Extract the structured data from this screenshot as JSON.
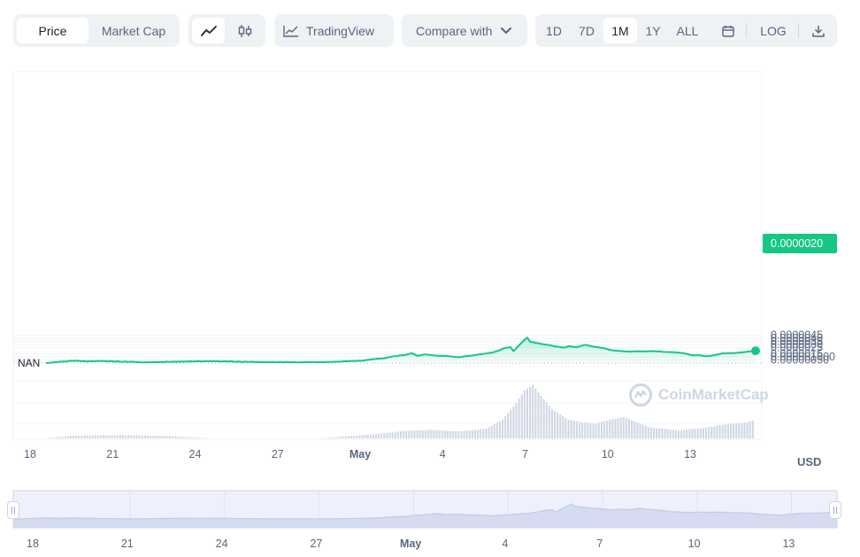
{
  "toolbar": {
    "metric_tabs": [
      {
        "label": "Price",
        "active": true
      },
      {
        "label": "Market Cap",
        "active": false
      }
    ],
    "chart_type_icons": [
      "line-chart-icon",
      "candlestick-icon"
    ],
    "tradingview_label": "TradingView",
    "compare_label": "Compare with",
    "ranges": [
      {
        "label": "1D",
        "active": false
      },
      {
        "label": "7D",
        "active": false
      },
      {
        "label": "1M",
        "active": true
      },
      {
        "label": "1Y",
        "active": false
      },
      {
        "label": "ALL",
        "active": false
      }
    ],
    "log_label": "LOG"
  },
  "colors": {
    "accent": "#16c784",
    "volume": "#cfd6e4",
    "muted": "#58667e"
  },
  "currency_label": "USD",
  "current_price_label": "0.0000020",
  "nan_label": "NAN",
  "watermark": "CoinMarketCap",
  "chart_data": {
    "type": "area",
    "y_tick_labels": [
      "0.0000045",
      "0.0000040",
      "0.0000035",
      "0.0000030",
      "0.0000025",
      "0.0000015",
      "0.000001000",
      "0.00000050"
    ],
    "y_ticks": [
      4.5e-06,
      4e-06,
      3.5e-06,
      3e-06,
      2.5e-06,
      1.5e-06,
      1e-06,
      5e-07
    ],
    "ylim": [
      0,
      4.7e-06
    ],
    "x_tick_labels": [
      "18",
      "21",
      "24",
      "27",
      "May",
      "4",
      "7",
      "10",
      "13"
    ],
    "x_ticks": [
      0,
      3,
      6,
      9,
      12,
      15,
      18,
      21,
      24
    ],
    "xlim": [
      0,
      25.8
    ],
    "series": [
      {
        "values": [
          [
            0.0,
            0.0
          ],
          [
            0.5,
            2e-07
          ],
          [
            1.0,
            3.8e-07
          ],
          [
            1.5,
            2.8e-07
          ],
          [
            2.0,
            3.5e-07
          ],
          [
            2.5,
            2.5e-07
          ],
          [
            3.0,
            2.2e-07
          ],
          [
            3.5,
            1.2e-07
          ],
          [
            4.0,
            1.5e-07
          ],
          [
            4.5,
            2e-07
          ],
          [
            5.0,
            2.5e-07
          ],
          [
            5.5,
            2.8e-07
          ],
          [
            6.0,
            3e-07
          ],
          [
            6.5,
            2.8e-07
          ],
          [
            7.0,
            2.2e-07
          ],
          [
            7.5,
            1.8e-07
          ],
          [
            8.0,
            1.5e-07
          ],
          [
            8.5,
            1.5e-07
          ],
          [
            9.0,
            1.2e-07
          ],
          [
            9.5,
            1.5e-07
          ],
          [
            10.0,
            1.5e-07
          ],
          [
            10.5,
            2e-07
          ],
          [
            11.0,
            3e-07
          ],
          [
            11.5,
            4e-07
          ],
          [
            12.0,
            7e-07
          ],
          [
            12.3,
            8e-07
          ],
          [
            12.5,
            1e-06
          ],
          [
            13.0,
            1.3e-06
          ],
          [
            13.3,
            1.6e-06
          ],
          [
            13.5,
            1.2e-06
          ],
          [
            13.8,
            1.4e-06
          ],
          [
            14.0,
            1.3e-06
          ],
          [
            14.3,
            1.2e-06
          ],
          [
            14.6,
            1.1e-06
          ],
          [
            15.0,
            9.5e-07
          ],
          [
            15.3,
            1.1e-06
          ],
          [
            15.6,
            1.3e-06
          ],
          [
            15.9,
            1.5e-06
          ],
          [
            16.2,
            1.7e-06
          ],
          [
            16.5,
            2.1e-06
          ],
          [
            16.7,
            2.5e-06
          ],
          [
            16.9,
            2.6e-06
          ],
          [
            17.0,
            1.9e-06
          ],
          [
            17.2,
            2.9e-06
          ],
          [
            17.4,
            3.8e-06
          ],
          [
            17.5,
            4.1e-06
          ],
          [
            17.6,
            3.5e-06
          ],
          [
            17.8,
            3.3e-06
          ],
          [
            18.0,
            3.1e-06
          ],
          [
            18.3,
            2.9e-06
          ],
          [
            18.5,
            2.7e-06
          ],
          [
            18.8,
            2.5e-06
          ],
          [
            19.0,
            2.7e-06
          ],
          [
            19.3,
            2.6e-06
          ],
          [
            19.6,
            3e-06
          ],
          [
            20.0,
            2.6e-06
          ],
          [
            20.3,
            2.4e-06
          ],
          [
            20.6,
            2.1e-06
          ],
          [
            21.0,
            1.9e-06
          ],
          [
            21.3,
            1.9e-06
          ],
          [
            21.5,
            1.95e-06
          ],
          [
            21.8,
            1.9e-06
          ],
          [
            22.0,
            1.95e-06
          ],
          [
            22.3,
            1.9e-06
          ],
          [
            22.6,
            1.8e-06
          ],
          [
            22.9,
            1.7e-06
          ],
          [
            23.2,
            1.6e-06
          ],
          [
            23.5,
            1.3e-06
          ],
          [
            23.8,
            1.25e-06
          ],
          [
            24.0,
            1.1e-06
          ],
          [
            24.3,
            1.3e-06
          ],
          [
            24.6,
            1.55e-06
          ],
          [
            25.0,
            1.65e-06
          ],
          [
            25.3,
            1.7e-06
          ],
          [
            25.6,
            1.9e-06
          ],
          [
            25.8,
            2e-06
          ]
        ]
      }
    ],
    "volume": [
      [
        0.0,
        0.0
      ],
      [
        1.0,
        0.05
      ],
      [
        2.0,
        0.06
      ],
      [
        3.0,
        0.06
      ],
      [
        4.0,
        0.05
      ],
      [
        5.0,
        0.03
      ],
      [
        6.0,
        0.0
      ],
      [
        8.0,
        0.0
      ],
      [
        10.0,
        0.0
      ],
      [
        12.0,
        0.08
      ],
      [
        13.0,
        0.14
      ],
      [
        14.0,
        0.16
      ],
      [
        15.0,
        0.13
      ],
      [
        16.0,
        0.18
      ],
      [
        16.6,
        0.35
      ],
      [
        17.0,
        0.6
      ],
      [
        17.4,
        0.9
      ],
      [
        17.7,
        1.0
      ],
      [
        18.0,
        0.8
      ],
      [
        18.4,
        0.55
      ],
      [
        19.0,
        0.35
      ],
      [
        19.5,
        0.3
      ],
      [
        20.0,
        0.28
      ],
      [
        20.5,
        0.35
      ],
      [
        21.0,
        0.4
      ],
      [
        21.5,
        0.3
      ],
      [
        22.0,
        0.2
      ],
      [
        22.5,
        0.18
      ],
      [
        23.0,
        0.15
      ],
      [
        23.5,
        0.18
      ],
      [
        24.0,
        0.2
      ],
      [
        24.5,
        0.25
      ],
      [
        25.0,
        0.28
      ],
      [
        25.5,
        0.3
      ],
      [
        25.8,
        0.35
      ]
    ],
    "grid": true,
    "legend": "none"
  },
  "navigator": {
    "x_tick_labels": [
      "18",
      "21",
      "24",
      "27",
      "May",
      "4",
      "7",
      "10",
      "13"
    ]
  }
}
